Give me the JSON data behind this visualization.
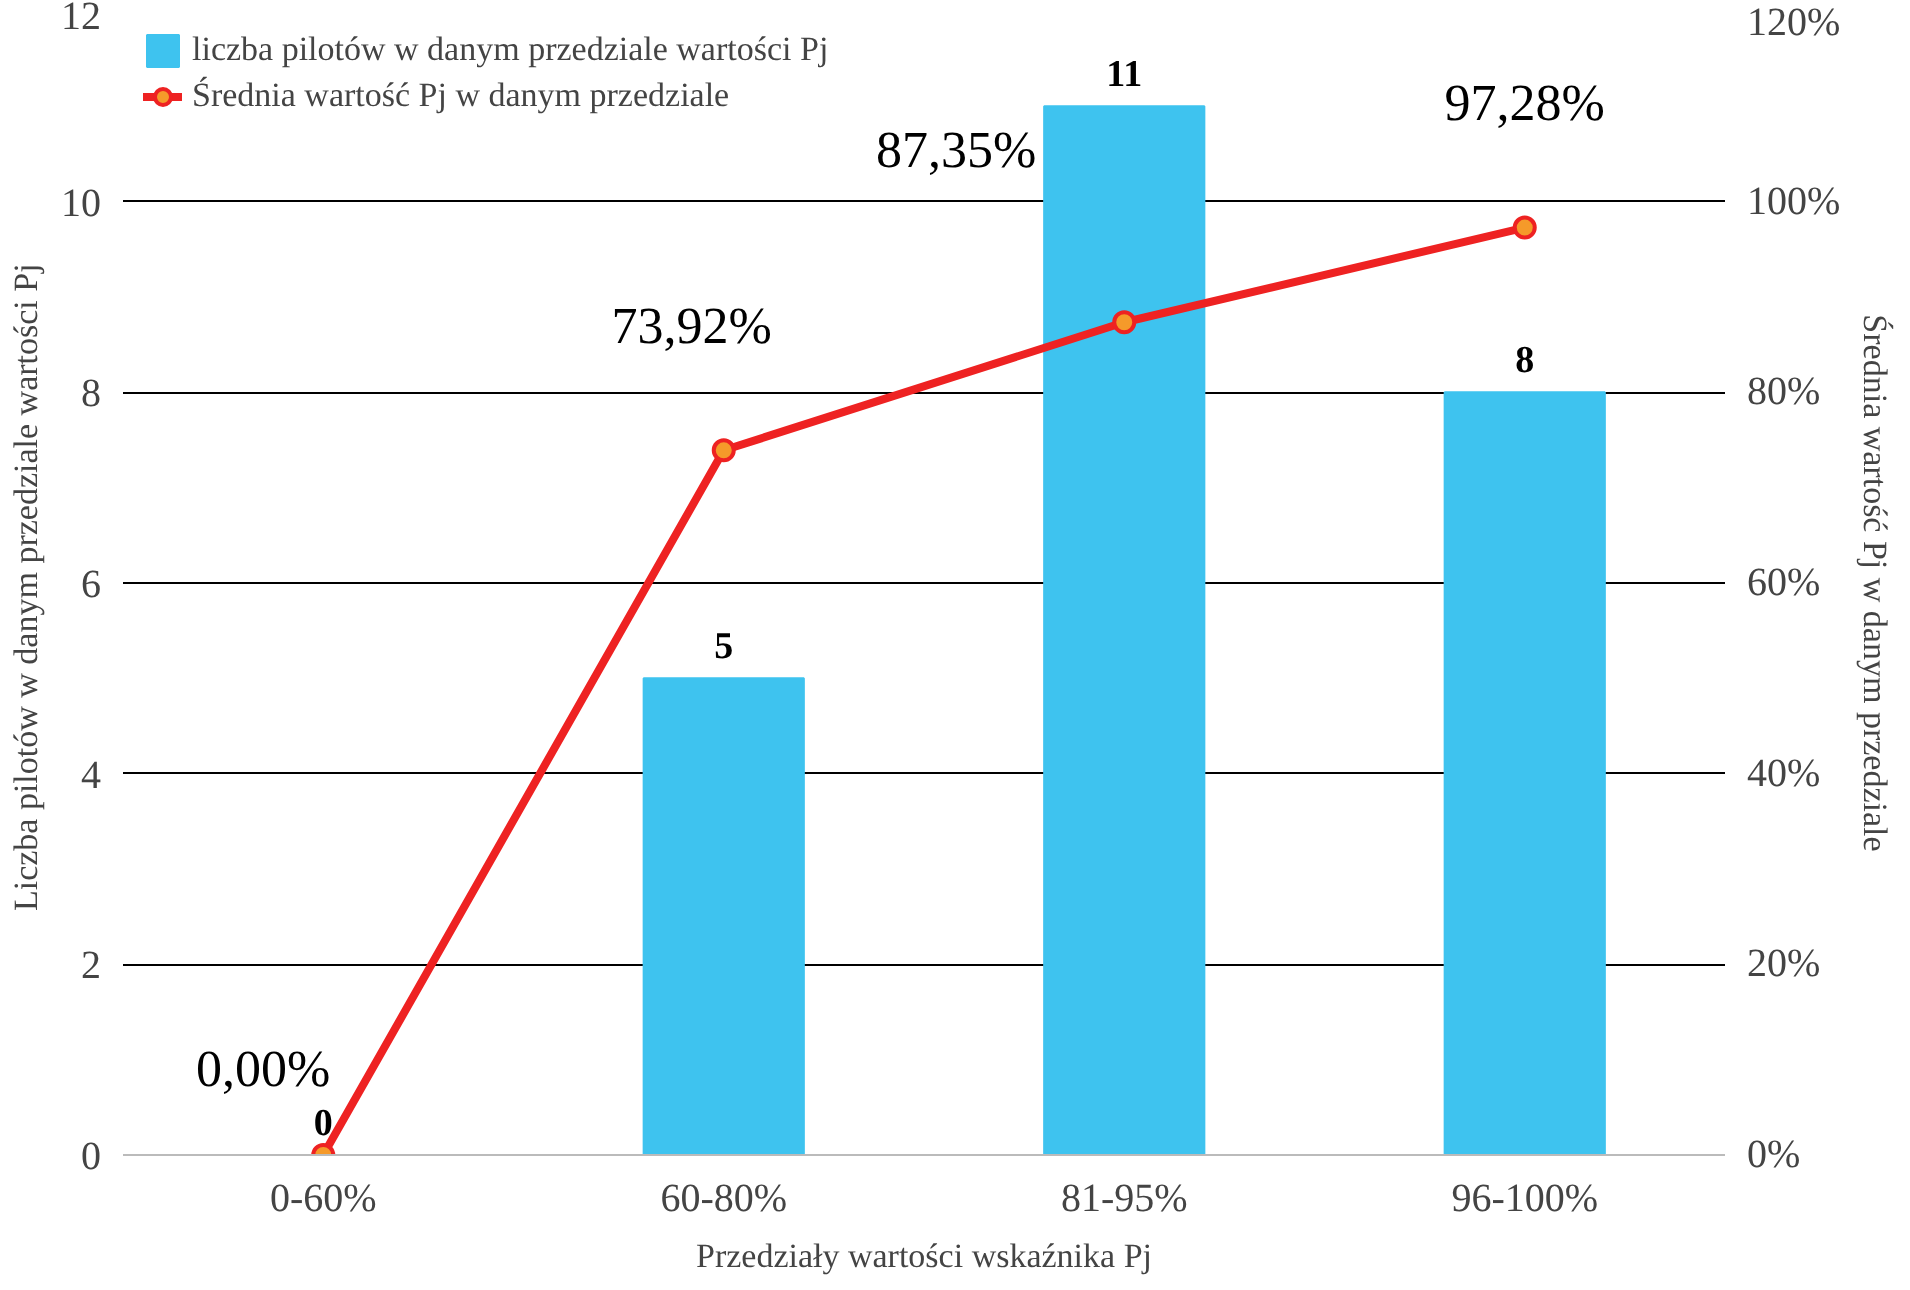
{
  "chart_data": {
    "type": "bar",
    "xlabel": "Przedziały wartości wskaźnika Pj",
    "ylabel": "Liczba pilotów w danym przedziale  wartości Pj",
    "y2label": "Średnia wartość Pj w danym przedziale",
    "categories": [
      "0-60%",
      "60-80%",
      "81-95%",
      "96-100%"
    ],
    "series": [
      {
        "name": "liczba pilotów w danym przedziale wartości Pj",
        "color": "#3ec3ef",
        "values": [
          0,
          5,
          11,
          8
        ],
        "value_labels": [
          "0",
          "5",
          "11",
          "8"
        ]
      },
      {
        "type": "line",
        "name": "Średnia wartość Pj w danym przedziale",
        "color": "#ee2222",
        "axis": "y2",
        "marker": "circle",
        "line_style": "solid",
        "values": [
          0,
          73.92,
          87.35,
          97.28
        ],
        "value_labels": [
          "0,00%",
          "73,92%",
          "87,35%",
          "97,28%"
        ]
      }
    ],
    "ylim": [
      0,
      12
    ],
    "yticks": [
      0,
      2,
      4,
      6,
      8,
      10,
      12
    ],
    "y2lim": [
      0,
      120
    ],
    "y2ticks": [
      {
        "value": 0,
        "label": "0%"
      },
      {
        "value": 20,
        "label": "20%"
      },
      {
        "value": 40,
        "label": "40%"
      },
      {
        "value": 60,
        "label": "60%"
      },
      {
        "value": 80,
        "label": "80%"
      },
      {
        "value": 100,
        "label": "100%"
      },
      {
        "value": 120,
        "label": "120%"
      }
    ],
    "grid": "y",
    "legend": "top left"
  }
}
